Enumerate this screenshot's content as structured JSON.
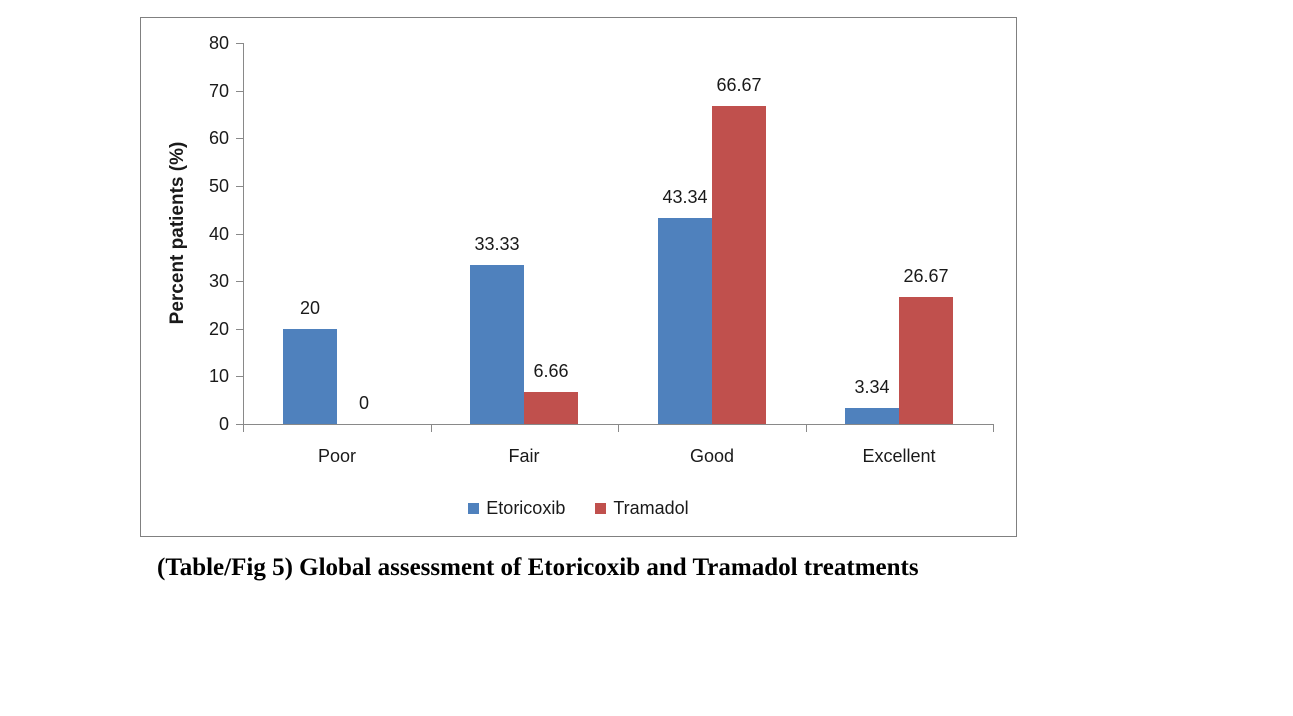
{
  "figure": {
    "caption": "(Table/Fig 5) Global assessment of Etoricoxib and Tramadol treatments"
  },
  "chart_data": {
    "type": "bar",
    "title": "",
    "xlabel": "",
    "ylabel": "Percent patients (%)",
    "categories": [
      "Poor",
      "Fair",
      "Good",
      "Excellent"
    ],
    "series": [
      {
        "name": "Etoricoxib",
        "color": "#4F81BD",
        "values": [
          20,
          33.33,
          43.34,
          3.34
        ],
        "labels": [
          "20",
          "33.33",
          "43.34",
          "3.34"
        ]
      },
      {
        "name": "Tramadol",
        "color": "#C0504D",
        "values": [
          0,
          6.66,
          66.67,
          26.67
        ],
        "labels": [
          "0",
          "6.66",
          "66.67",
          "26.67"
        ]
      }
    ],
    "ylim": [
      0,
      80
    ],
    "ytick_step": 10,
    "yticks": [
      "0",
      "10",
      "20",
      "30",
      "40",
      "50",
      "60",
      "70",
      "80"
    ],
    "grid": false,
    "legend_position": "bottom",
    "axis_color": "#898989",
    "border_color": "#808080"
  }
}
